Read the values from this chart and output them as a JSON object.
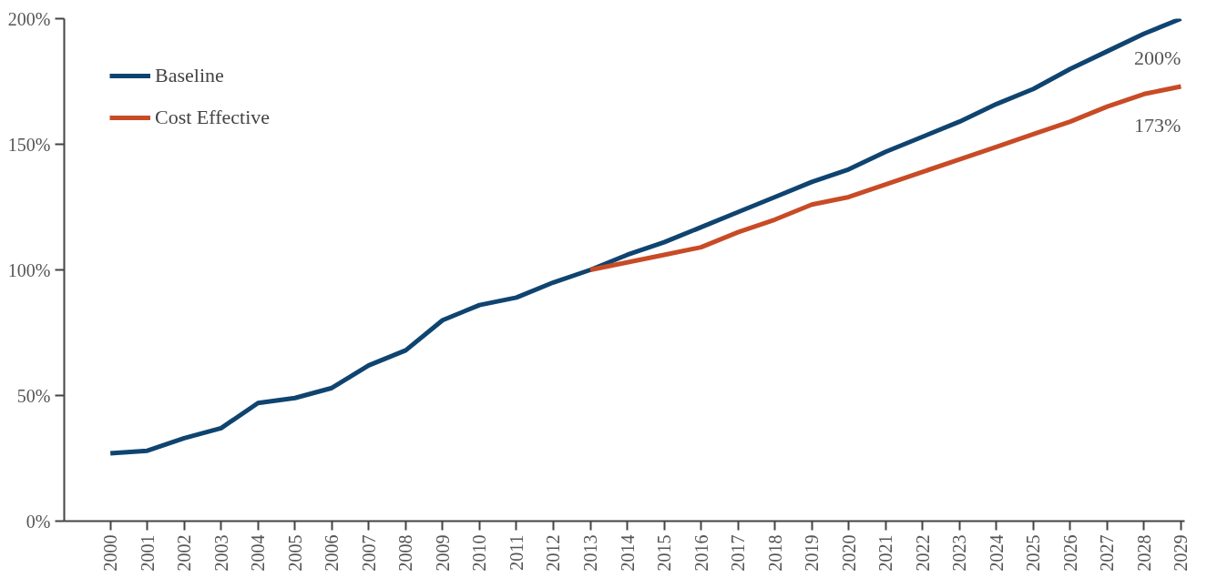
{
  "chart_data": {
    "type": "line",
    "categories": [
      "2000",
      "2001",
      "2002",
      "2003",
      "2004",
      "2005",
      "2006",
      "2007",
      "2008",
      "2009",
      "2010",
      "2011",
      "2012",
      "2013",
      "2014",
      "2015",
      "2016",
      "2017",
      "2018",
      "2019",
      "2020",
      "2021",
      "2022",
      "2023",
      "2024",
      "2025",
      "2026",
      "2027",
      "2028",
      "2029"
    ],
    "series": [
      {
        "name": "Baseline",
        "color": "#0f4470",
        "values": [
          27,
          28,
          33,
          37,
          47,
          49,
          53,
          62,
          68,
          80,
          86,
          89,
          95,
          100,
          106,
          111,
          117,
          123,
          129,
          135,
          140,
          147,
          153,
          159,
          166,
          172,
          180,
          187,
          194,
          200
        ]
      },
      {
        "name": "Cost Effective",
        "color": "#c84b26",
        "values": [
          null,
          null,
          null,
          null,
          null,
          null,
          null,
          null,
          null,
          null,
          null,
          null,
          null,
          100,
          103,
          106,
          109,
          115,
          120,
          126,
          129,
          134,
          139,
          144,
          149,
          154,
          159,
          165,
          170,
          173
        ]
      }
    ],
    "ylim": [
      0,
      200
    ],
    "yticks": [
      {
        "value": 0,
        "label": "0%"
      },
      {
        "value": 50,
        "label": "50%"
      },
      {
        "value": 100,
        "label": "100%"
      },
      {
        "value": 150,
        "label": "150%"
      },
      {
        "value": 200,
        "label": "200%"
      }
    ],
    "annotations": [
      {
        "text": "200%",
        "x": "2029",
        "y": 200
      },
      {
        "text": "173%",
        "x": "2029",
        "y": 173
      }
    ],
    "legend": "top left",
    "grid": false,
    "marker": "none",
    "line_style": "solid"
  }
}
